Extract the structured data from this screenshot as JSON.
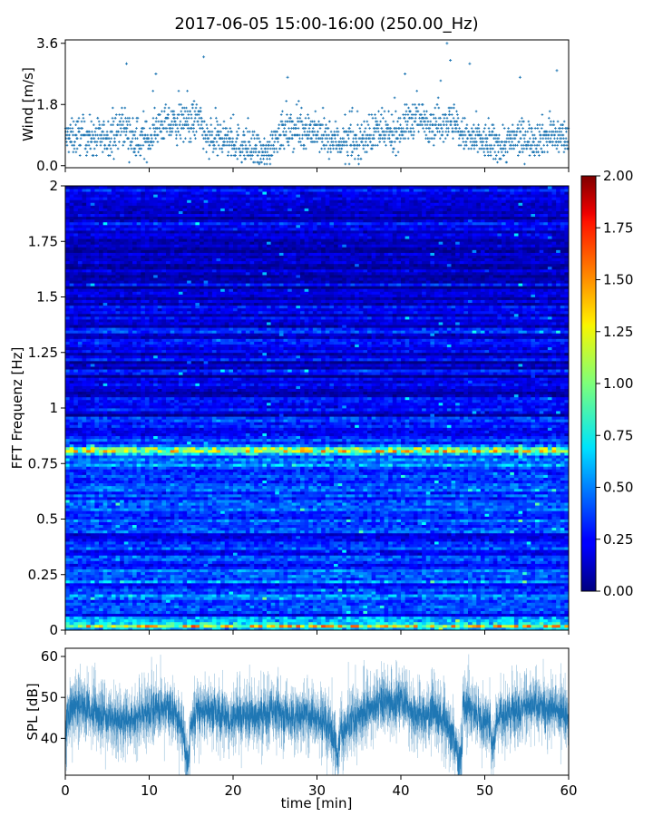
{
  "title": "2017-06-05 15:00-16:00 (250.00_Hz)",
  "colors": {
    "scatter": "#1f77b4",
    "line": "#1f77b4",
    "colormap": "jet"
  },
  "chart_data": [
    {
      "type": "scatter",
      "name": "wind",
      "ylabel": "Wind [m/s]",
      "xlim": [
        0,
        60
      ],
      "ylim": [
        -0.06,
        3.7
      ],
      "yticks": [
        0.0,
        1.8,
        3.6
      ],
      "ytick_labels": [
        "0.0",
        "1.8",
        "3.6"
      ],
      "x_tick_labels_shown": false,
      "marker": "plus",
      "points_per_minute": 30,
      "profile_x": [
        0,
        2,
        4,
        6,
        7,
        8,
        10,
        11,
        13,
        15,
        16,
        17,
        19,
        21,
        23,
        24,
        25,
        27,
        29,
        31,
        33,
        35,
        37,
        39,
        41,
        42,
        44,
        45,
        46,
        47,
        48,
        50,
        52,
        54,
        56,
        58,
        60
      ],
      "profile_mean": [
        0.8,
        0.9,
        0.8,
        0.9,
        1.2,
        0.7,
        0.8,
        1.2,
        1.2,
        1.3,
        1.3,
        0.7,
        0.8,
        0.6,
        0.4,
        0.3,
        0.9,
        1.0,
        1.1,
        0.8,
        0.7,
        0.7,
        1.0,
        0.9,
        1.3,
        1.4,
        1.2,
        1.3,
        1.3,
        1.0,
        0.8,
        0.7,
        0.6,
        0.8,
        0.8,
        0.9,
        0.8
      ],
      "spread": 0.45,
      "peaks": [
        [
          7.3,
          3.0
        ],
        [
          16.5,
          3.2
        ],
        [
          45.5,
          3.6
        ],
        [
          45.9,
          3.1
        ],
        [
          48.2,
          3.0
        ],
        [
          58.6,
          2.8
        ],
        [
          10.8,
          2.7
        ],
        [
          40.5,
          2.7
        ],
        [
          26.5,
          2.6
        ],
        [
          54.2,
          2.6
        ]
      ]
    },
    {
      "type": "heatmap",
      "name": "spectrogram",
      "ylabel": "FFT Frequenz [Hz]",
      "xlim": [
        0,
        60
      ],
      "ylim": [
        0,
        2
      ],
      "yticks": [
        0,
        0.25,
        0.5,
        0.75,
        1,
        1.25,
        1.5,
        1.75,
        2
      ],
      "ytick_labels": [
        "0",
        "0.25",
        "0.5",
        "0.75",
        "1",
        "1.25",
        "1.5",
        "1.75",
        "2"
      ],
      "x_tick_labels_shown": false,
      "colormap": "jet",
      "vmin": 0.0,
      "vmax": 2.0,
      "colorbar_ticks": [
        0.0,
        0.25,
        0.5,
        0.75,
        1.0,
        1.25,
        1.5,
        1.75,
        2.0
      ],
      "colorbar_tick_labels": [
        "0.00",
        "0.25",
        "0.50",
        "0.75",
        "1.00",
        "1.25",
        "1.50",
        "1.75",
        "2.00"
      ],
      "n_time_bins": 120,
      "n_freq_bins": 160,
      "background_profile": {
        "freq": [
          0,
          0.25,
          0.5,
          0.75,
          1.0,
          1.25,
          1.5,
          1.75,
          2.0
        ],
        "level": [
          0.45,
          0.38,
          0.32,
          0.4,
          0.22,
          0.2,
          0.17,
          0.14,
          0.18
        ]
      },
      "bands": [
        {
          "freq": 0.81,
          "level": 1.55
        },
        {
          "freq": 0.02,
          "level": 1.5
        },
        {
          "freq": 0.05,
          "level": 0.9
        },
        {
          "freq": 0.265,
          "level": 0.65
        },
        {
          "freq": 0.77,
          "level": 0.65
        },
        {
          "freq": 0.55,
          "level": 0.55
        }
      ]
    },
    {
      "type": "line",
      "name": "spl",
      "ylabel": "SPL [dB]",
      "xlabel": "time [min]",
      "xlim": [
        0,
        60
      ],
      "ylim": [
        31,
        62
      ],
      "xticks": [
        0,
        10,
        20,
        30,
        40,
        50,
        60
      ],
      "xtick_labels": [
        "0",
        "10",
        "20",
        "30",
        "40",
        "50",
        "60"
      ],
      "yticks": [
        40,
        50,
        60
      ],
      "ytick_labels": [
        "40",
        "50",
        "60"
      ],
      "samples_per_minute": 40,
      "profile_x": [
        0,
        1,
        3,
        5,
        7,
        9,
        11,
        13,
        14.5,
        15.5,
        17,
        19,
        21,
        23,
        25,
        27,
        29,
        31,
        32.5,
        34,
        36,
        38,
        40,
        42,
        44,
        45.5,
        46.8,
        47.2,
        48,
        50,
        52,
        54,
        56,
        58,
        60
      ],
      "profile_mean": [
        44,
        48,
        47,
        45,
        44,
        46,
        48,
        47,
        40,
        46,
        47,
        45,
        46,
        45,
        47,
        45,
        46,
        44,
        40,
        44,
        47,
        49,
        49,
        46,
        46,
        44,
        37,
        49,
        48,
        43,
        46,
        47,
        47,
        48,
        45
      ],
      "noise": 4.5,
      "dips": [
        [
          14.5,
          33
        ],
        [
          32.5,
          36
        ],
        [
          47,
          33
        ],
        [
          51,
          38
        ]
      ]
    }
  ]
}
